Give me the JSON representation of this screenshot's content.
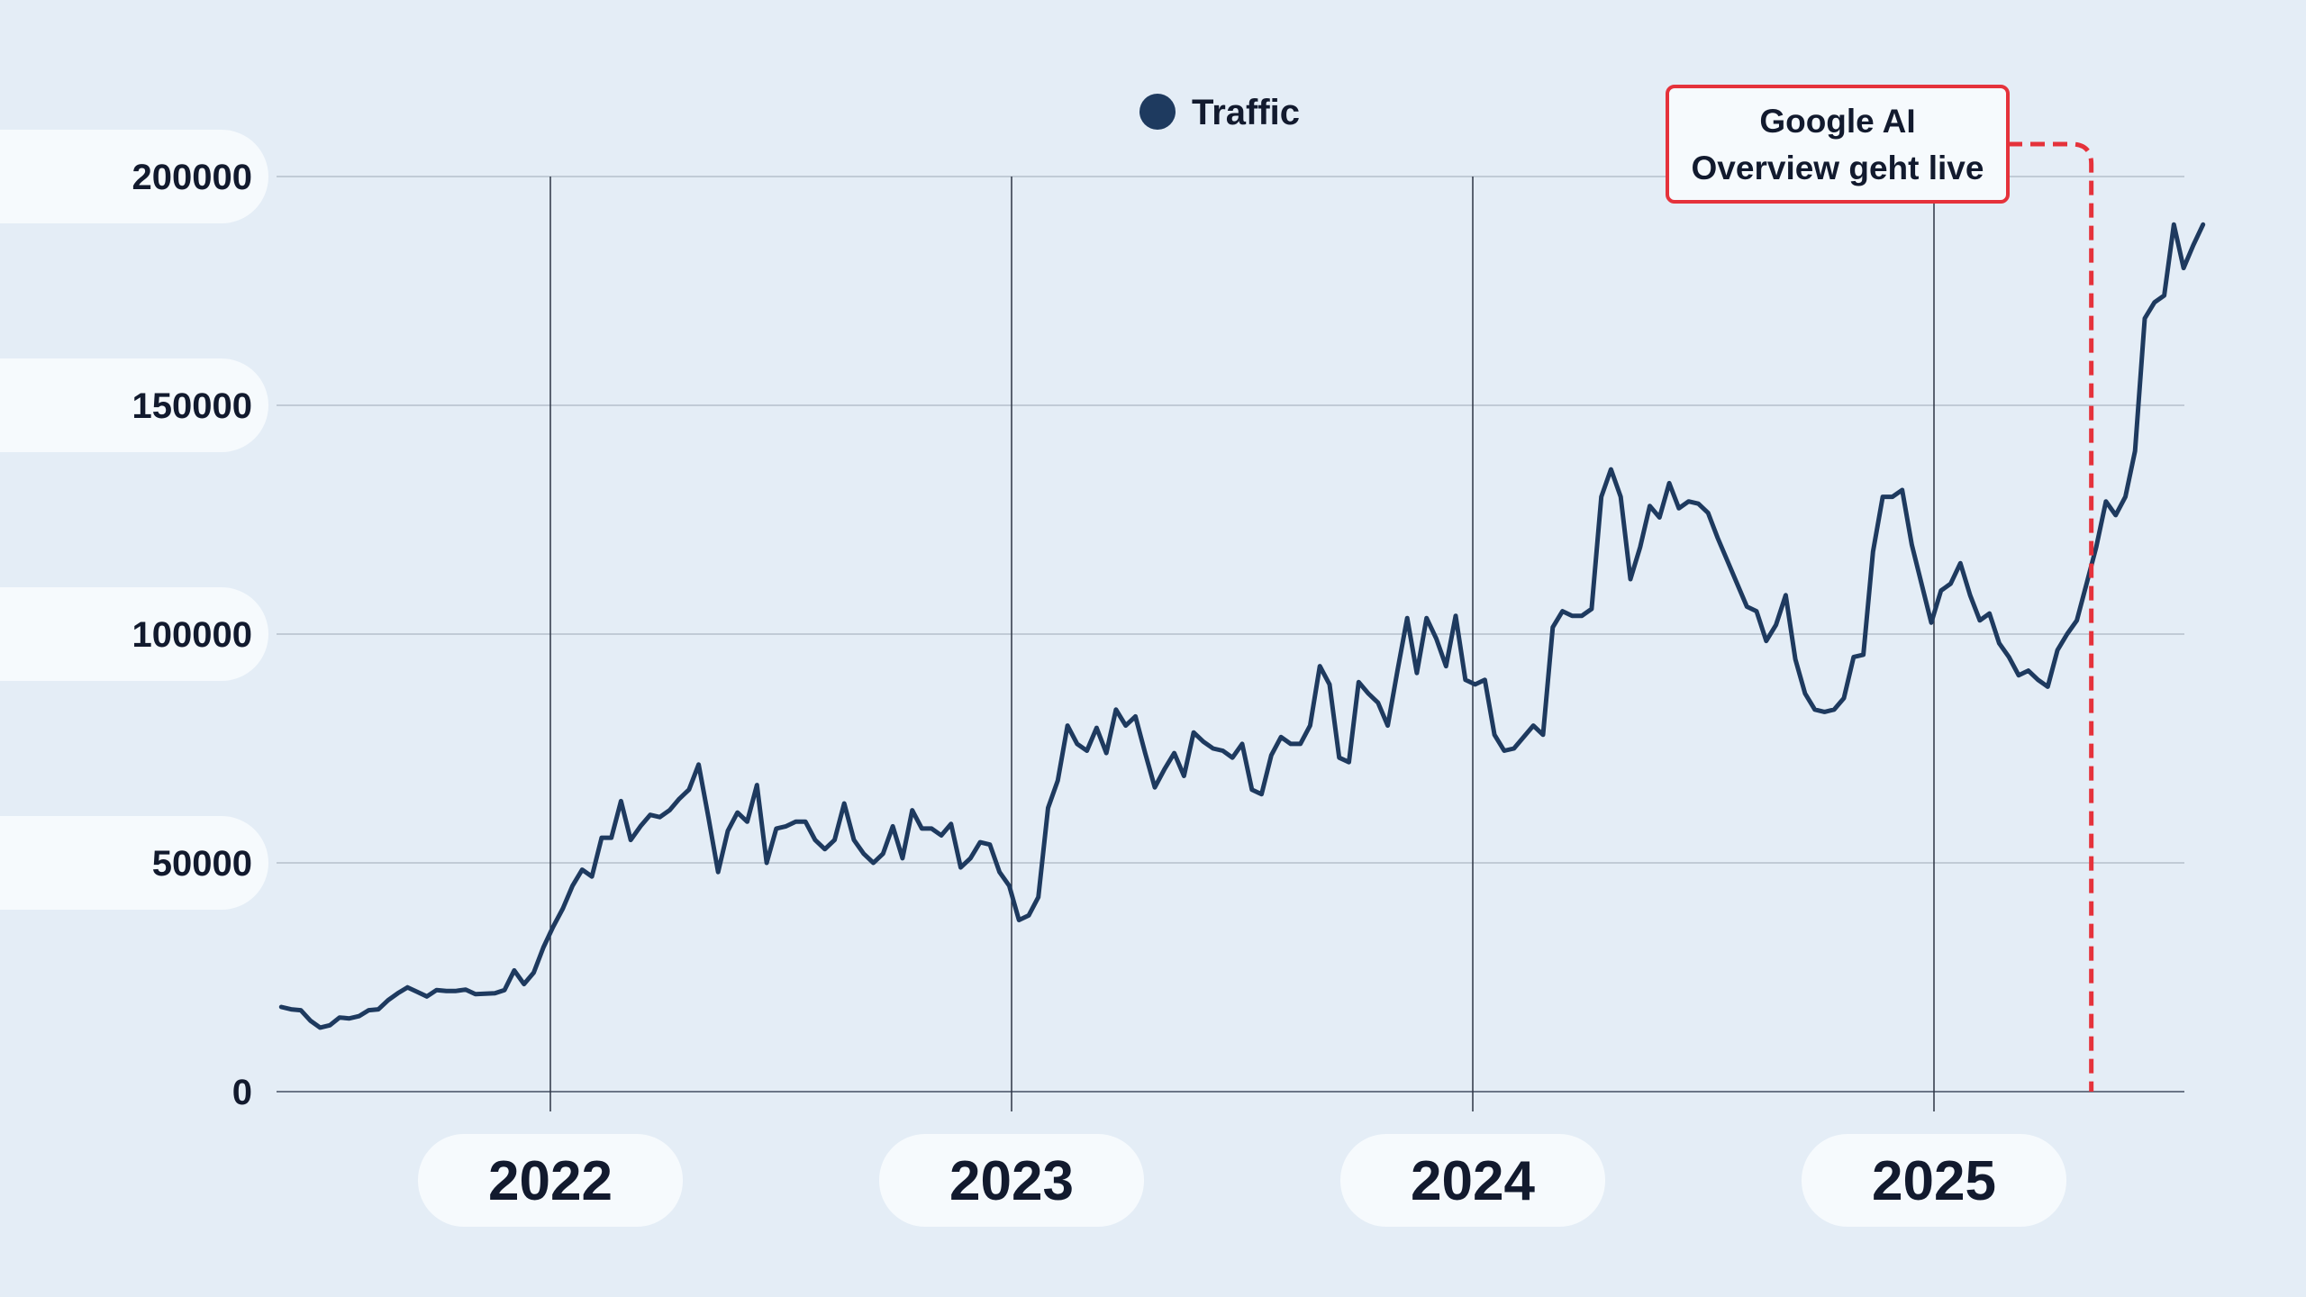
{
  "chart_data": {
    "type": "line",
    "title": "",
    "xlabel": "",
    "ylabel": "",
    "ylim": [
      0,
      200000
    ],
    "yticks": [
      "0",
      "50000",
      "100000",
      "150000",
      "200000"
    ],
    "xticks": [
      "2022",
      "2023",
      "2024",
      "2025"
    ],
    "grid": true,
    "legend_position": "top-center",
    "series": [
      {
        "name": "Traffic",
        "color": "#1e3a5f",
        "x_start": "2021-06",
        "x_end": "2025-08",
        "values": [
          18500,
          18000,
          17800,
          15500,
          14000,
          14500,
          16200,
          16000,
          16500,
          17800,
          18000,
          20000,
          21500,
          22800,
          21800,
          20800,
          22200,
          22000,
          22000,
          22300,
          21300,
          21400,
          21500,
          22200,
          26500,
          23500,
          26000,
          31500,
          36000,
          40000,
          45000,
          48500,
          47000,
          55500,
          55500,
          63500,
          55000,
          58000,
          60500,
          60000,
          61500,
          64000,
          66000,
          71500,
          60000,
          48000,
          57000,
          61000,
          59000,
          67000,
          50000,
          57500,
          58000,
          59000,
          59000,
          55000,
          53000,
          55000,
          63000,
          55000,
          52000,
          50000,
          52000,
          58000,
          51000,
          61500,
          57500,
          57500,
          56000,
          58500,
          49000,
          51000,
          54500,
          54000,
          48000,
          45000,
          37500,
          38500,
          42500,
          62000,
          68000,
          80000,
          76000,
          74500,
          79500,
          74000,
          83500,
          80000,
          82000,
          74000,
          66500,
          70500,
          74000,
          69000,
          78500,
          76500,
          75000,
          74500,
          73000,
          76000,
          66000,
          65000,
          73500,
          77500,
          76000,
          76000,
          80000,
          93000,
          89000,
          73000,
          72000,
          89500,
          87000,
          85000,
          80000,
          92000,
          103500,
          91500,
          103500,
          99000,
          93000,
          104000,
          90000,
          89000,
          90000,
          78000,
          74500,
          75000,
          77500,
          80000,
          78000,
          101500,
          105000,
          104000,
          104000,
          105500,
          130000,
          136000,
          130000,
          112000,
          119000,
          128000,
          125500,
          133000,
          127500,
          129000,
          128500,
          126500,
          121000,
          116000,
          111000,
          106000,
          105000,
          98500,
          102000,
          108500,
          94500,
          87000,
          83500,
          83000,
          83500,
          86000,
          95000,
          95500,
          118000,
          130000,
          130000,
          131500,
          119500,
          111000,
          102500,
          109500,
          111000,
          115500,
          108500,
          103000,
          104500,
          98000,
          95000,
          91000,
          92000,
          90000,
          88500,
          96500,
          100000,
          103000,
          111000,
          119000,
          129000,
          126000,
          130000,
          140000,
          169000,
          172500,
          174000,
          189500,
          180000,
          185000,
          189500
        ]
      }
    ],
    "annotation": {
      "text_line1": "Google AI",
      "text_line2": "Overview geht live",
      "date": "2025-05",
      "color": "#e5323b"
    }
  }
}
